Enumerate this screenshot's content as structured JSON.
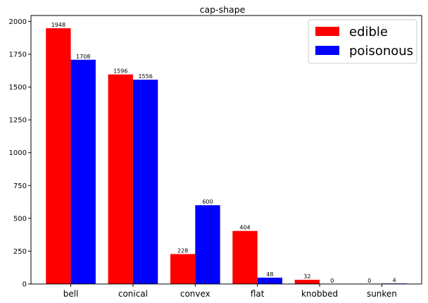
{
  "chart_data": {
    "type": "bar",
    "title": "cap-shape",
    "xlabel": "",
    "ylabel": "",
    "categories": [
      "bell",
      "conical",
      "convex",
      "flat",
      "knobbed",
      "sunken"
    ],
    "series": [
      {
        "name": "edible",
        "color": "#ff0000",
        "values": [
          1948,
          1596,
          228,
          404,
          32,
          0
        ]
      },
      {
        "name": "poisonous",
        "color": "#0000ff",
        "values": [
          1708,
          1556,
          600,
          48,
          0,
          4
        ]
      }
    ],
    "ylim": [
      0,
      2045
    ],
    "yticks": [
      0,
      250,
      500,
      750,
      1000,
      1250,
      1500,
      1750,
      2000
    ],
    "grid": false,
    "legend_position": "top-right"
  }
}
